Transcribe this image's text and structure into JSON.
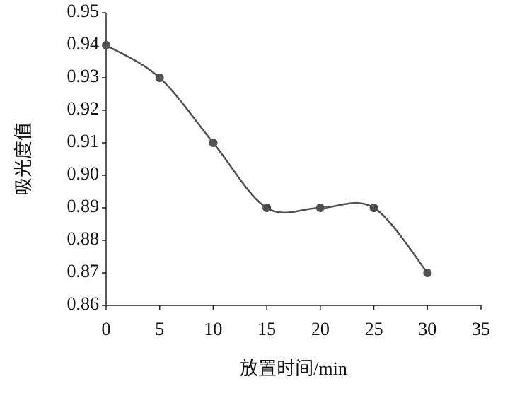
{
  "chart_data": {
    "type": "line",
    "x_label": "放置时间/min",
    "y_label": "吸光度值",
    "x": [
      0,
      5,
      10,
      15,
      20,
      25,
      30
    ],
    "series": [
      {
        "name": "吸光度值",
        "color": "#505050",
        "values": [
          0.94,
          0.93,
          0.91,
          0.89,
          0.89,
          0.89,
          0.87
        ]
      }
    ],
    "xlim": [
      0,
      35
    ],
    "xticks": [
      0,
      5,
      10,
      15,
      20,
      25,
      30,
      35
    ],
    "ylim": [
      0.86,
      0.95
    ],
    "yticks": [
      0.86,
      0.87,
      0.88,
      0.89,
      {
        "value": 0.9,
        "label": "0.90"
      },
      0.91,
      0.92,
      0.93,
      0.94,
      0.95
    ],
    "smooth": true
  }
}
